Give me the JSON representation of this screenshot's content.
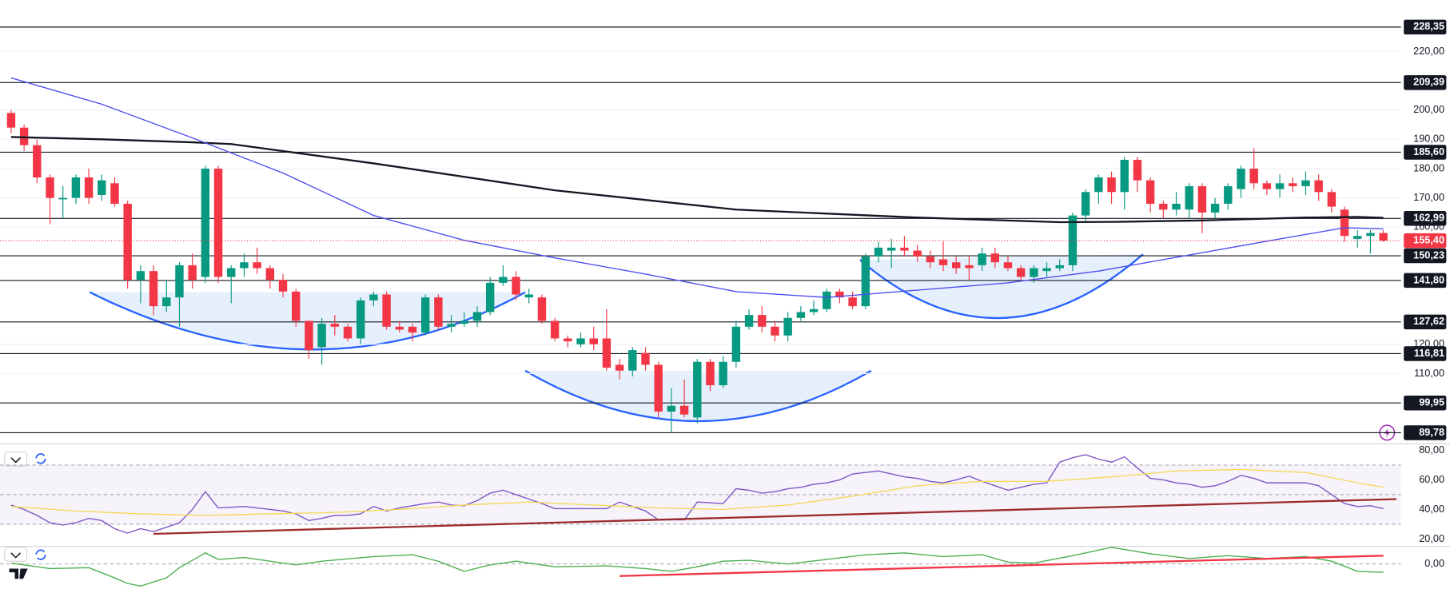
{
  "chart_data": [
    {
      "type": "candlestick",
      "xlim": [
        -0.86,
        107.36
      ],
      "ylim": [
        86,
        237.6
      ],
      "grid": true,
      "up_color": "#089981",
      "down_color": "#f23645",
      "yticks": [
        {
          "value": 220,
          "label": "220,00"
        },
        {
          "value": 200,
          "label": "200,00"
        },
        {
          "value": 190,
          "label": "190,00"
        },
        {
          "value": 180,
          "label": "180,00"
        },
        {
          "value": 170,
          "label": "170,00"
        },
        {
          "value": 160,
          "label": "160,00"
        },
        {
          "value": 120,
          "label": "120,00"
        },
        {
          "value": 110,
          "label": "110,00"
        }
      ],
      "open": [
        199,
        194,
        188,
        177,
        169.5,
        170,
        177,
        171,
        175,
        168,
        142,
        145,
        133,
        136,
        147,
        143,
        180,
        143,
        146,
        148,
        146,
        142,
        138,
        128,
        119,
        127,
        126,
        122,
        135,
        137,
        126,
        126,
        124,
        136,
        126,
        127,
        128,
        131,
        141,
        143,
        136,
        136,
        128,
        122,
        120,
        122,
        122,
        113,
        111,
        117,
        113,
        97,
        99,
        95,
        114,
        106,
        114,
        126,
        130,
        126,
        123,
        129,
        131,
        132,
        138,
        136,
        133,
        150,
        152,
        153,
        152,
        150,
        149,
        148,
        147,
        147,
        151,
        148,
        146,
        143,
        145,
        146,
        147,
        164,
        172,
        177,
        172,
        183,
        176,
        168,
        166,
        166,
        174,
        165,
        168,
        173,
        180,
        175,
        173,
        175,
        174,
        176,
        172,
        166,
        156,
        157,
        158
      ],
      "high": [
        200,
        195,
        190,
        178,
        174,
        178,
        180,
        178,
        177,
        169,
        147,
        147,
        142,
        148,
        151,
        181,
        181,
        147,
        151,
        153,
        147,
        144,
        139,
        128,
        129,
        130,
        127,
        136,
        138,
        138,
        128,
        127,
        137,
        137,
        130,
        131,
        133,
        143,
        147,
        145,
        139,
        137,
        129,
        123,
        124,
        126,
        132,
        115,
        119,
        119,
        114,
        105,
        108,
        115,
        115,
        116,
        128,
        132,
        133,
        128,
        131,
        133,
        135,
        139,
        139,
        138,
        151,
        155,
        156,
        157,
        154,
        152,
        155,
        150,
        150,
        153,
        153,
        150,
        147,
        147,
        148,
        149,
        165,
        173,
        178,
        179,
        184,
        184,
        177,
        169,
        172,
        175,
        175,
        170,
        175,
        181,
        187,
        176,
        178,
        177,
        179,
        178,
        173,
        167,
        159,
        159,
        159
      ],
      "low": [
        192,
        186,
        175,
        161,
        163,
        168,
        168,
        169,
        167,
        139,
        134,
        130,
        131,
        126,
        139,
        141,
        141,
        134,
        143,
        144,
        139,
        136,
        126,
        115,
        113,
        123,
        121,
        120,
        133,
        125,
        124,
        121,
        123,
        125,
        124,
        126,
        126,
        130,
        140,
        135,
        134,
        127,
        121,
        119,
        119,
        118,
        111,
        108,
        109,
        111,
        95,
        90,
        95,
        93,
        104,
        105,
        112,
        125,
        124,
        121,
        121,
        128,
        130,
        131,
        134,
        132,
        132,
        148,
        146,
        150,
        148,
        146,
        145,
        144,
        142,
        145,
        146,
        145,
        142,
        141,
        143,
        145,
        145,
        162,
        168,
        168,
        166,
        172,
        165,
        163,
        164,
        163,
        158,
        163,
        166,
        170,
        173,
        171,
        170,
        172,
        171,
        169,
        165,
        155,
        153,
        151,
        155
      ],
      "close": [
        194,
        188,
        177,
        170,
        170,
        177,
        170,
        176,
        168,
        142,
        145,
        133,
        136,
        147,
        142,
        180,
        143,
        146,
        148,
        146,
        142,
        138,
        128,
        118,
        127,
        126,
        122,
        135,
        137,
        126,
        125,
        124,
        136,
        126,
        127,
        128,
        131,
        141,
        143,
        137,
        137,
        128,
        122,
        121,
        122,
        120,
        112,
        111,
        118,
        113,
        97,
        99,
        96,
        114,
        106,
        114,
        126,
        130,
        126,
        123,
        129,
        131,
        132,
        138,
        136,
        133,
        150,
        153,
        153,
        152,
        150,
        148,
        147,
        146,
        146,
        151,
        148,
        146,
        143,
        146,
        146,
        147,
        164,
        172,
        177,
        172,
        183,
        176,
        168,
        166,
        168,
        174,
        165,
        168,
        174,
        180,
        175,
        173,
        175,
        174,
        176,
        172,
        167,
        157,
        157,
        158,
        155.4
      ],
      "series": [
        {
          "color": "#131722",
          "x": [
            0,
            7,
            14,
            17,
            28,
            42,
            56,
            70,
            81,
            85,
            92,
            100,
            104,
            106
          ],
          "values": [
            190.8,
            190,
            189,
            188.4,
            181.8,
            172.6,
            166,
            163.3,
            161.7,
            161.8,
            162.3,
            163.3,
            163.5,
            163.2
          ]
        },
        {
          "color": "#4f4ff0",
          "x": [
            0,
            7,
            14,
            21,
            28,
            35,
            42,
            49,
            56,
            63,
            70,
            77,
            84,
            91,
            98,
            103,
            106
          ],
          "values": [
            211,
            202,
            190.5,
            178.5,
            164,
            155.5,
            149.5,
            144,
            138,
            136,
            138.5,
            141,
            145,
            150.5,
            156,
            159.8,
            159.4
          ]
        }
      ],
      "levels": [
        {
          "value": 228.35,
          "label": "228,35"
        },
        {
          "value": 209.39,
          "label": "209,39"
        },
        {
          "value": 185.6,
          "label": "185,60"
        },
        {
          "value": 162.99,
          "label": "162,99"
        },
        {
          "value": 150.23,
          "label": "150,23"
        },
        {
          "value": 141.8,
          "label": "141,80"
        },
        {
          "value": 127.62,
          "label": "127,62"
        },
        {
          "value": 116.81,
          "label": "116,81"
        },
        {
          "value": 99.95,
          "label": "99,95"
        },
        {
          "value": 89.78,
          "label": "89,78"
        }
      ],
      "last_price": {
        "value": 155.4,
        "label": "155,40",
        "color": "#f23645"
      }
    },
    {
      "type": "line",
      "xlim": [
        -0.86,
        107.36
      ],
      "ylim": [
        15,
        84.4
      ],
      "yticks": [
        {
          "value": 80,
          "label": "80,00"
        },
        {
          "value": 60,
          "label": "60,00"
        },
        {
          "value": 40,
          "label": "40,00"
        },
        {
          "value": 20,
          "label": "20,00"
        }
      ],
      "bands": [
        70,
        50,
        30
      ],
      "series": [
        {
          "color": "#7e57c2",
          "values": [
            43,
            40,
            36,
            31,
            29.5,
            31,
            34,
            32.5,
            27,
            24,
            27,
            25,
            28,
            31,
            40,
            52,
            41,
            41.5,
            42,
            41,
            40,
            39,
            37,
            32.5,
            34,
            36,
            36,
            37,
            42,
            39,
            41,
            42.5,
            44,
            45,
            43,
            42.5,
            46,
            51,
            53,
            50,
            47,
            44,
            40.6,
            40.6,
            40.6,
            40.6,
            40.6,
            45,
            42,
            39,
            33,
            33,
            33,
            45,
            44.5,
            44,
            54,
            53,
            51,
            52,
            54,
            55,
            57,
            58,
            60,
            64,
            65,
            66,
            64,
            62,
            61,
            59,
            58,
            60,
            62.5,
            59,
            56,
            53,
            55,
            57,
            58,
            72,
            75,
            77,
            74,
            72,
            75.6,
            68,
            61,
            60,
            58,
            57,
            55,
            56,
            59,
            63,
            61,
            58,
            58,
            58,
            58,
            56,
            50,
            44,
            42,
            42.5,
            40.6
          ]
        },
        {
          "color": "#f5d95a",
          "x": [
            0,
            5,
            10,
            15,
            20,
            25,
            30,
            35,
            40,
            45,
            50,
            55,
            60,
            65,
            70,
            75,
            80,
            85,
            90,
            95,
            100,
            104,
            106
          ],
          "values": [
            42,
            39,
            37,
            36,
            37,
            38,
            40,
            43,
            45,
            43,
            41,
            40,
            43,
            49,
            56,
            59,
            59,
            62,
            66,
            67,
            65,
            58,
            55
          ]
        },
        {
          "color": "#9c2b2b",
          "x": [
            11,
            107
          ],
          "values": [
            23.5,
            47
          ]
        }
      ]
    },
    {
      "type": "line",
      "xlim": [
        -0.86,
        107.36
      ],
      "ylim": [
        -3.5,
        1.9
      ],
      "yticks": [
        {
          "value": 0,
          "label": "0,00"
        }
      ],
      "bands": [
        0
      ],
      "series": [
        {
          "color": "#4caf50",
          "x": [
            0,
            3,
            6,
            8,
            9,
            10,
            12,
            13,
            15,
            16,
            18,
            20,
            22,
            24,
            28,
            31,
            33,
            35,
            37,
            39,
            42,
            46,
            49,
            51,
            53,
            55,
            57,
            60,
            63,
            66,
            69,
            72,
            75,
            77,
            79,
            82,
            85,
            88,
            91,
            94,
            97,
            100,
            102,
            104,
            106
          ],
          "values": [
            0.1,
            -0.5,
            -0.4,
            -1.5,
            -2.1,
            -2.4,
            -1.5,
            -0.4,
            1.2,
            0.5,
            0.7,
            0.3,
            -0.1,
            0.3,
            0.8,
            1.0,
            0.3,
            -0.8,
            -0.1,
            0.3,
            -0.3,
            -0.2,
            -0.5,
            -0.8,
            -0.3,
            0.3,
            0.4,
            0,
            0.5,
            1.0,
            1.2,
            0.8,
            1.0,
            0.2,
            0.1,
            0.9,
            1.8,
            1.1,
            0.6,
            0.9,
            0.6,
            0.8,
            0.3,
            -0.8,
            -0.9
          ]
        },
        {
          "color": "#f23645",
          "x": [
            47,
            106
          ],
          "values": [
            -1.3,
            0.9
          ]
        }
      ]
    }
  ]
}
